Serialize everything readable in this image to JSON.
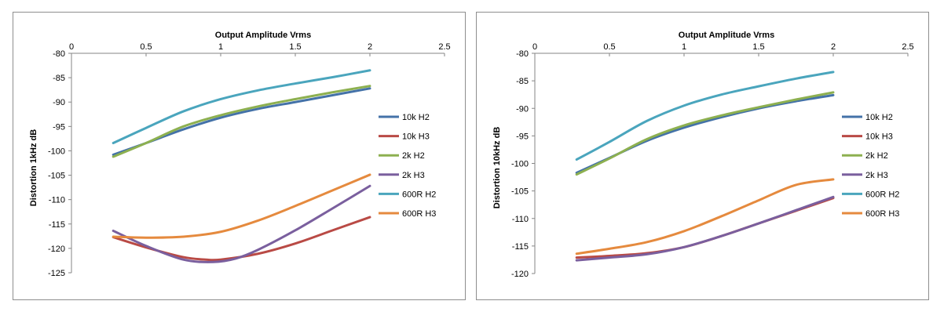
{
  "chart_data": [
    {
      "type": "line",
      "title": "Output Amplitude   Vrms",
      "xlabel": "Output Amplitude   Vrms",
      "ylabel": "Distortion 1kHz  dB",
      "xlim": [
        0,
        2.5
      ],
      "ylim": [
        -125,
        -80
      ],
      "xticks": [
        0,
        0.5,
        1,
        1.5,
        2,
        2.5
      ],
      "xtick_labels": [
        "0",
        "0.5",
        "1",
        "1.5",
        "2",
        "2.5"
      ],
      "yticks": [
        -80,
        -85,
        -90,
        -95,
        -100,
        -105,
        -110,
        -115,
        -120,
        -125
      ],
      "ytick_labels": [
        "-80",
        "-85",
        "-90",
        "-95",
        "-100",
        "-105",
        "-110",
        "-115",
        "-120",
        "-125"
      ],
      "x_axis_position": "top",
      "grid": false,
      "legend_position": "right",
      "series": [
        {
          "name": "10k H2",
          "color": "#4472a8",
          "x": [
            0.28,
            0.5,
            0.75,
            1.0,
            1.25,
            1.5,
            1.75,
            2.0
          ],
          "y": [
            -100.8,
            -98.4,
            -95.6,
            -93.2,
            -91.4,
            -90.0,
            -88.6,
            -87.2
          ]
        },
        {
          "name": "10k H3",
          "color": "#b94a45",
          "x": [
            0.28,
            0.5,
            0.75,
            0.9,
            1.0,
            1.25,
            1.5,
            1.75,
            2.0
          ],
          "y": [
            -117.7,
            -119.8,
            -121.8,
            -122.3,
            -122.3,
            -121.1,
            -119.0,
            -116.3,
            -113.6
          ]
        },
        {
          "name": "2k H2",
          "color": "#8db050",
          "x": [
            0.28,
            0.5,
            0.75,
            1.0,
            1.25,
            1.5,
            1.75,
            2.0
          ],
          "y": [
            -101.2,
            -98.4,
            -95.0,
            -92.7,
            -90.9,
            -89.4,
            -88.0,
            -86.7
          ]
        },
        {
          "name": "2k H3",
          "color": "#7a5f9e",
          "x": [
            0.28,
            0.5,
            0.75,
            0.95,
            1.1,
            1.25,
            1.5,
            1.75,
            2.0
          ],
          "y": [
            -116.4,
            -119.5,
            -122.3,
            -122.8,
            -122.1,
            -120.3,
            -116.3,
            -111.8,
            -107.2
          ]
        },
        {
          "name": "600R H2",
          "color": "#4aa5bd",
          "x": [
            0.28,
            0.5,
            0.75,
            1.0,
            1.25,
            1.5,
            1.75,
            2.0
          ],
          "y": [
            -98.4,
            -95.3,
            -91.9,
            -89.4,
            -87.6,
            -86.2,
            -84.9,
            -83.5
          ]
        },
        {
          "name": "600R H3",
          "color": "#e58a3e",
          "x": [
            0.28,
            0.5,
            0.75,
            1.0,
            1.25,
            1.5,
            1.75,
            2.0
          ],
          "y": [
            -117.6,
            -117.8,
            -117.6,
            -116.6,
            -114.3,
            -111.3,
            -108.1,
            -104.9
          ]
        }
      ]
    },
    {
      "type": "line",
      "title": "Output Amplitude   Vrms",
      "xlabel": "Output Amplitude   Vrms",
      "ylabel": "Distortion 10kHz  dB",
      "xlim": [
        0,
        2.5
      ],
      "ylim": [
        -120,
        -80
      ],
      "xticks": [
        0,
        0.5,
        1,
        1.5,
        2,
        2.5
      ],
      "xtick_labels": [
        "0",
        "0.5",
        "1",
        "1.5",
        "2",
        "2.5"
      ],
      "yticks": [
        -80,
        -85,
        -90,
        -95,
        -100,
        -105,
        -110,
        -115,
        -120
      ],
      "ytick_labels": [
        "-80",
        "-85",
        "-90",
        "-95",
        "-100",
        "-105",
        "-110",
        "-115",
        "-120"
      ],
      "x_axis_position": "top",
      "grid": false,
      "legend_position": "right",
      "series": [
        {
          "name": "10k H2",
          "color": "#4472a8",
          "x": [
            0.28,
            0.5,
            0.75,
            1.0,
            1.25,
            1.5,
            1.75,
            2.0
          ],
          "y": [
            -101.7,
            -99.0,
            -95.9,
            -93.5,
            -91.6,
            -90.0,
            -88.7,
            -87.6
          ]
        },
        {
          "name": "10k H3",
          "color": "#b94a45",
          "x": [
            0.28,
            0.5,
            0.75,
            1.0,
            1.25,
            1.5,
            1.75,
            2.0
          ],
          "y": [
            -117.1,
            -116.8,
            -116.3,
            -115.2,
            -113.2,
            -110.9,
            -108.6,
            -106.3
          ]
        },
        {
          "name": "2k H2",
          "color": "#8db050",
          "x": [
            0.28,
            0.5,
            0.75,
            1.0,
            1.25,
            1.5,
            1.75,
            2.0
          ],
          "y": [
            -102.0,
            -99.1,
            -95.6,
            -93.1,
            -91.3,
            -89.8,
            -88.4,
            -87.1
          ]
        },
        {
          "name": "2k H3",
          "color": "#7a5f9e",
          "x": [
            0.28,
            0.5,
            0.75,
            1.0,
            1.25,
            1.5,
            1.75,
            2.0
          ],
          "y": [
            -117.6,
            -117.1,
            -116.5,
            -115.2,
            -113.2,
            -110.9,
            -108.5,
            -106.1
          ]
        },
        {
          "name": "600R H2",
          "color": "#4aa5bd",
          "x": [
            0.28,
            0.5,
            0.75,
            1.0,
            1.25,
            1.5,
            1.75,
            2.0
          ],
          "y": [
            -99.3,
            -96.1,
            -92.3,
            -89.5,
            -87.5,
            -86.0,
            -84.6,
            -83.4
          ]
        },
        {
          "name": "600R H3",
          "color": "#e58a3e",
          "x": [
            0.28,
            0.5,
            0.75,
            1.0,
            1.25,
            1.5,
            1.75,
            2.0
          ],
          "y": [
            -116.4,
            -115.5,
            -114.3,
            -112.3,
            -109.6,
            -106.7,
            -103.9,
            -102.9
          ]
        }
      ]
    }
  ]
}
